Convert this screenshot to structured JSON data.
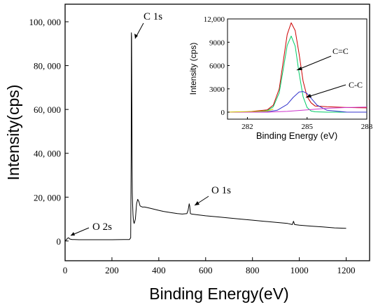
{
  "chart_data": [
    {
      "type": "line",
      "xlabel": "Binding Energy(eV)",
      "ylabel": "Intensity(cps)",
      "xlim": [
        0,
        1300
      ],
      "ylim": [
        -9000,
        108000
      ],
      "xticks": [
        0,
        200,
        400,
        600,
        800,
        1000,
        1200
      ],
      "xtick_labels": [
        "0",
        "200",
        "400",
        "600",
        "800",
        "1000",
        "1200"
      ],
      "yticks": [
        0,
        20000,
        40000,
        60000,
        80000,
        100000
      ],
      "ytick_labels": [
        "0",
        "20, 000",
        "40, 000",
        "60, 000",
        "80, 000",
        "100, 000"
      ],
      "grid": false,
      "annotations": [
        "C 1s",
        "O 1s",
        "O 2s"
      ],
      "series": [
        {
          "color": "#000000",
          "x": [
            0,
            5,
            10,
            15,
            20,
            30,
            40,
            60,
            100,
            150,
            200,
            250,
            275,
            280,
            282,
            283,
            284,
            285,
            286,
            287,
            288,
            290,
            292,
            295,
            300,
            305,
            310,
            315,
            320,
            330,
            340,
            360,
            380,
            400,
            420,
            450,
            480,
            500,
            520,
            525,
            530,
            532,
            535,
            540,
            560,
            600,
            650,
            700,
            750,
            800,
            850,
            900,
            950,
            970,
            975,
            980,
            1000,
            1050,
            1100,
            1150,
            1200
          ],
          "y": [
            0,
            500,
            1200,
            1500,
            900,
            700,
            650,
            600,
            600,
            600,
            600,
            650,
            700,
            1500,
            40000,
            95000,
            93000,
            60000,
            35000,
            22000,
            17000,
            12000,
            9000,
            8000,
            10000,
            17000,
            19000,
            18000,
            16000,
            15500,
            15500,
            15000,
            14500,
            14000,
            13500,
            13000,
            12500,
            12300,
            12500,
            14000,
            17000,
            16000,
            12500,
            12300,
            12000,
            11500,
            11000,
            10500,
            10000,
            9500,
            9000,
            8500,
            8000,
            7500,
            9000,
            7500,
            7200,
            6800,
            6400,
            6000,
            5800
          ]
        }
      ]
    },
    {
      "type": "line",
      "xlabel": "Binding Energy (eV)",
      "ylabel": "Intensity (cps)",
      "xlim": [
        281,
        288
      ],
      "ylim": [
        -900,
        12000
      ],
      "xticks": [
        282,
        285,
        288
      ],
      "xtick_labels": [
        "282",
        "285",
        "288"
      ],
      "yticks": [
        0,
        3000,
        6000,
        9000,
        12000
      ],
      "ytick_labels": [
        "0",
        "3000",
        "6000",
        "9000",
        "12,000"
      ],
      "grid": false,
      "annotations": [
        "C=C",
        "C-C"
      ],
      "series": [
        {
          "color": "#cc0000",
          "x": [
            281,
            282,
            283,
            283.3,
            283.6,
            283.8,
            284,
            284.2,
            284.4,
            284.6,
            284.8,
            285,
            285.2,
            285.4,
            286,
            287,
            288
          ],
          "y": [
            0,
            50,
            300,
            900,
            3000,
            6500,
            10000,
            11500,
            10500,
            7500,
            4000,
            2000,
            1200,
            800,
            700,
            600,
            550
          ]
        },
        {
          "color": "#00cc66",
          "x": [
            281,
            282,
            283,
            283.3,
            283.6,
            283.8,
            284,
            284.2,
            284.4,
            284.6,
            284.8,
            285,
            285.2,
            285.4,
            286,
            287,
            288
          ],
          "y": [
            0,
            0,
            200,
            700,
            2500,
            5500,
            8600,
            9800,
            8500,
            5000,
            2000,
            600,
            150,
            50,
            0,
            0,
            0
          ]
        },
        {
          "color": "#3333cc",
          "x": [
            281,
            282,
            283,
            283.5,
            284,
            284.3,
            284.6,
            284.8,
            285,
            285.2,
            285.5,
            286,
            287,
            288
          ],
          "y": [
            0,
            0,
            50,
            250,
            1000,
            1900,
            2600,
            2650,
            2400,
            1800,
            900,
            250,
            0,
            0
          ]
        },
        {
          "color": "#cc33cc",
          "x": [
            281,
            283,
            284,
            285,
            286,
            287,
            288
          ],
          "y": [
            0,
            0,
            100,
            300,
            500,
            600,
            650
          ]
        },
        {
          "color": "#cccc00",
          "x": [
            281,
            283,
            283.3
          ],
          "y": [
            0,
            150,
            400
          ]
        }
      ]
    }
  ]
}
